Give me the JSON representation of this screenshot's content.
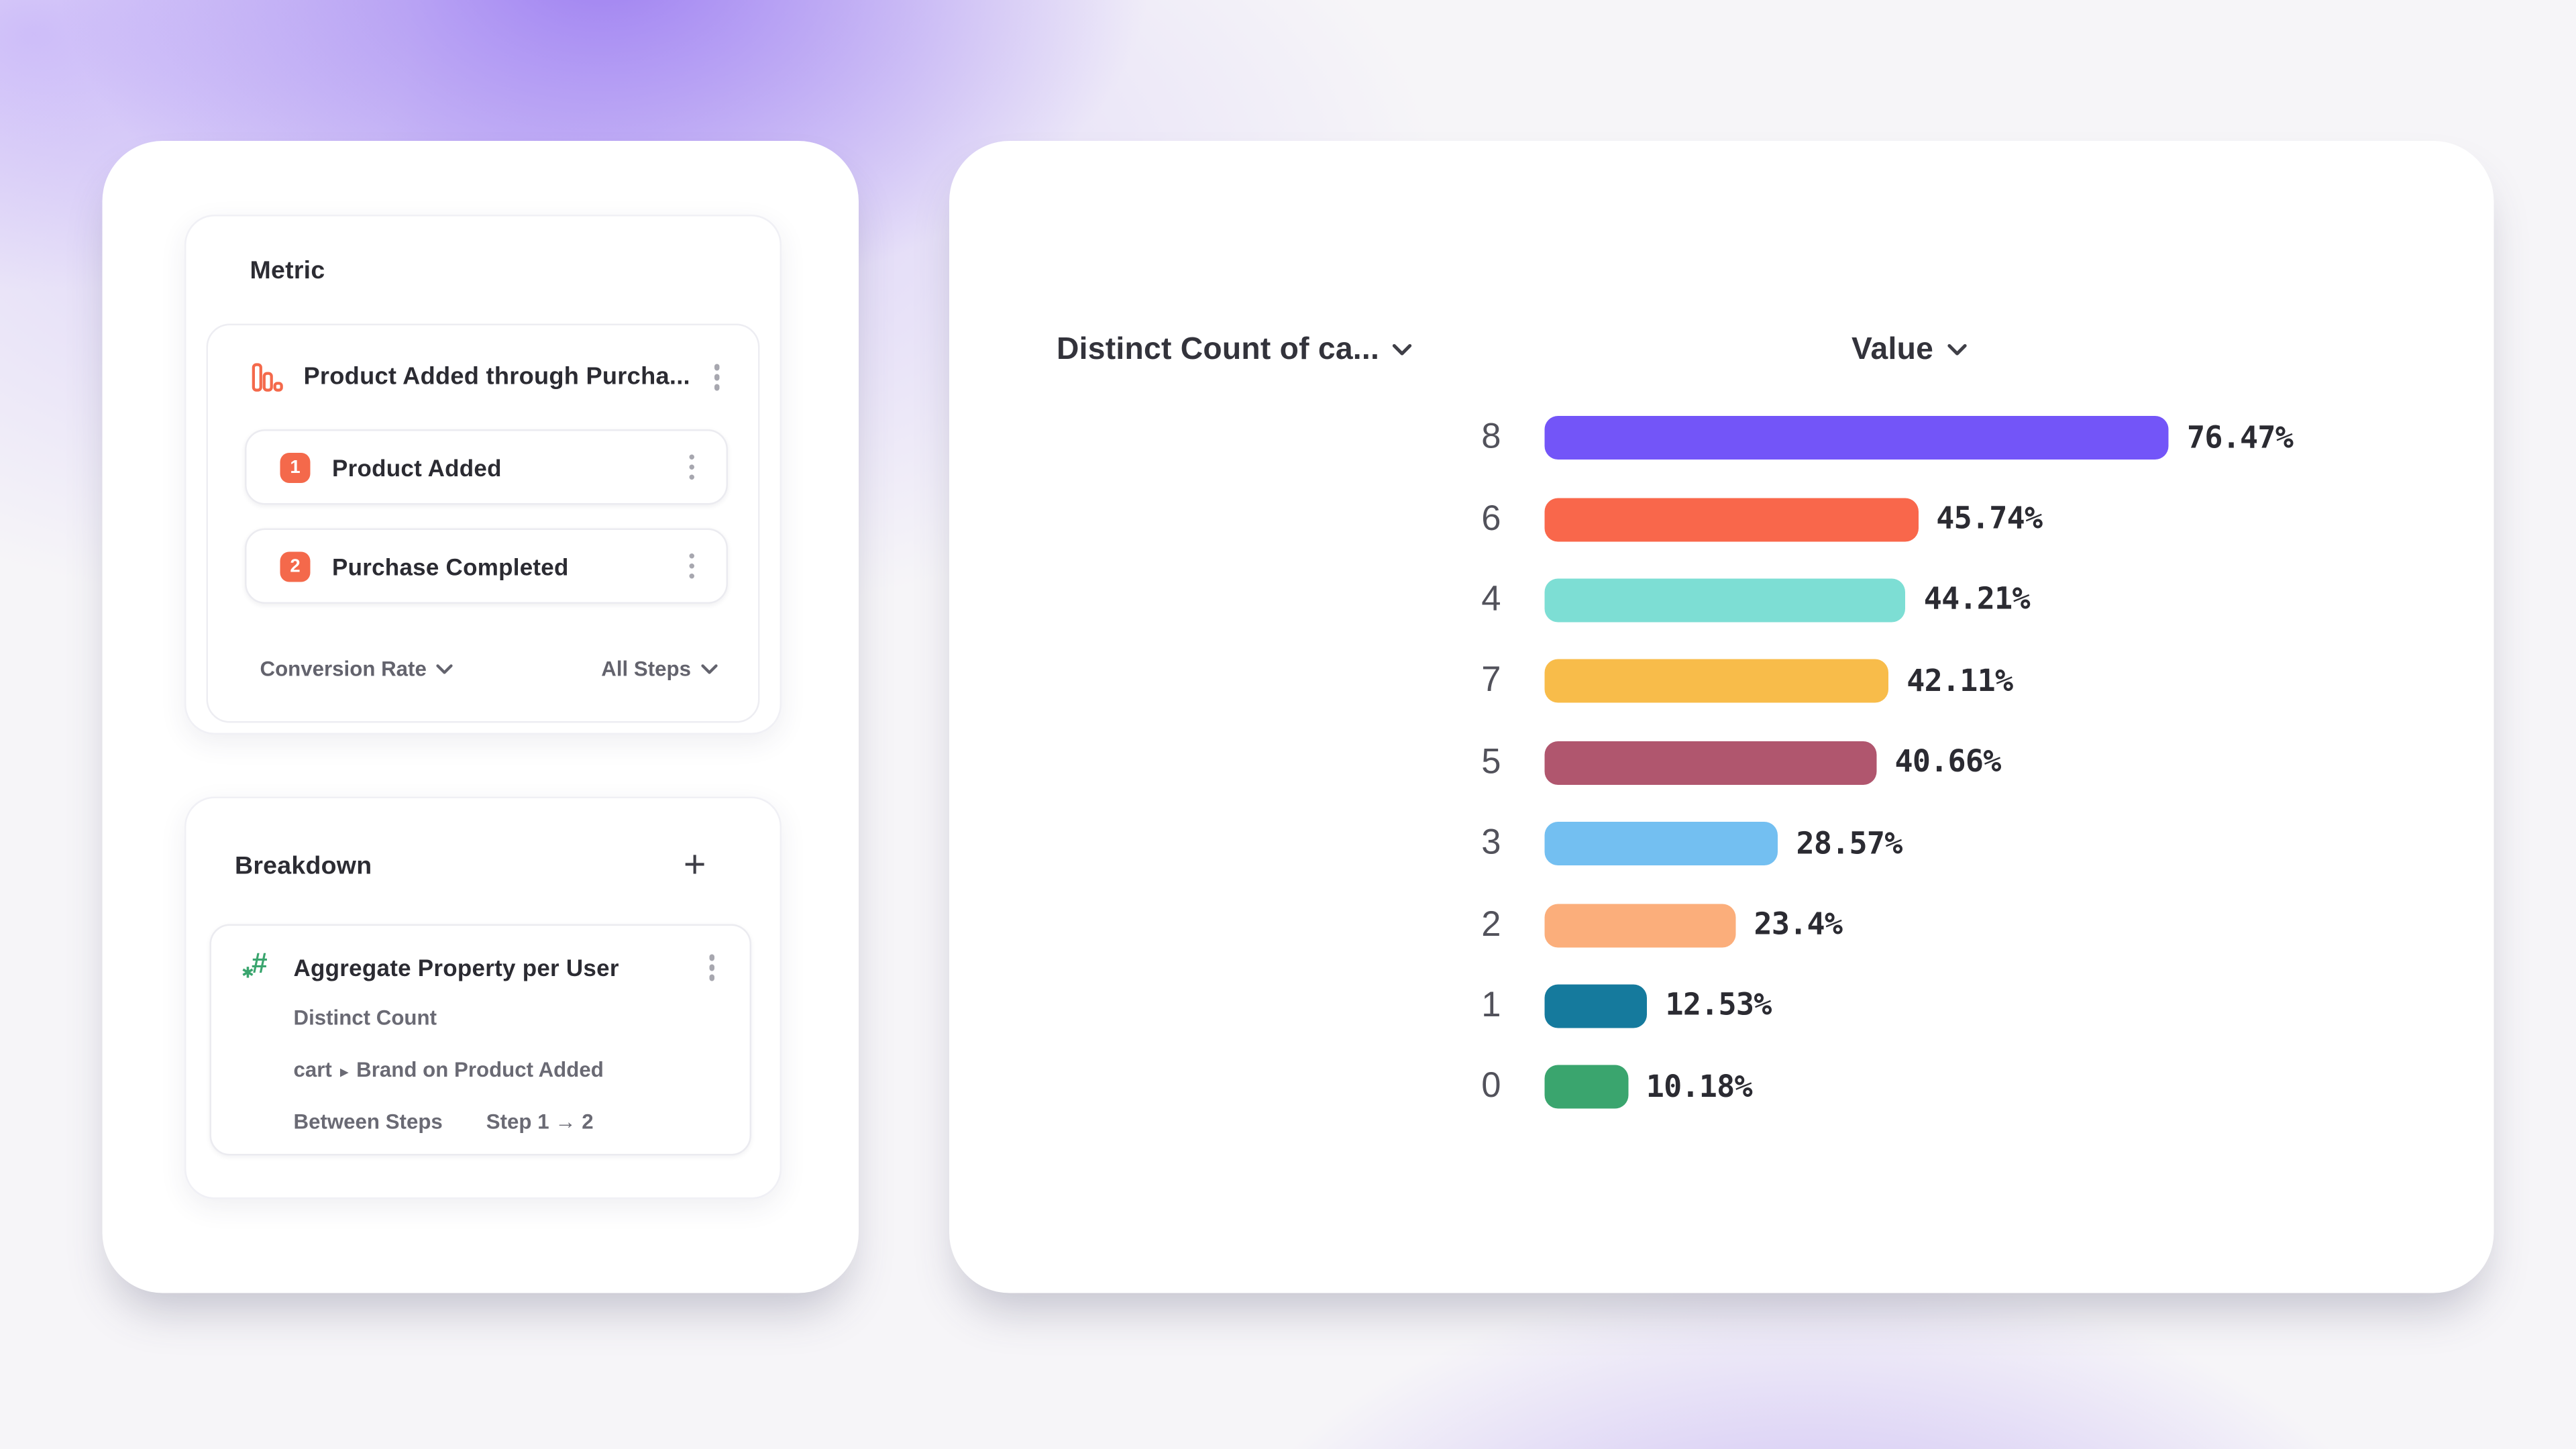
{
  "page": {
    "background_base": "#f6f5f8",
    "glow_color": "#8f6df2"
  },
  "metric_panel": {
    "title": "Metric",
    "metric": {
      "icon": "funnel-bars-icon",
      "name": "Product Added through Purcha...",
      "accent_color": "#f4694b"
    },
    "steps": [
      {
        "index": "1",
        "label": "Product Added"
      },
      {
        "index": "2",
        "label": "Purchase Completed"
      }
    ],
    "footer": {
      "measure_dropdown": "Conversion Rate",
      "steps_dropdown": "All Steps"
    }
  },
  "breakdown_panel": {
    "title": "Breakdown",
    "add_button": "+",
    "item": {
      "icon": "hash-aggregate-icon",
      "icon_color": "#3aa56e",
      "name": "Aggregate Property per User",
      "aggregation": "Distinct Count",
      "property_event": "cart",
      "property_name": "Brand on Product Added",
      "scope_label": "Between Steps",
      "scope_value": "Step 1 → 2"
    }
  },
  "chart": {
    "category_header": "Distinct Count of ca...",
    "value_header": "Value"
  },
  "chart_data": {
    "type": "bar",
    "orientation": "horizontal",
    "categories": [
      "8",
      "6",
      "4",
      "7",
      "5",
      "3",
      "2",
      "1",
      "0"
    ],
    "values": [
      76.47,
      45.74,
      44.21,
      42.11,
      40.66,
      28.57,
      23.4,
      12.53,
      10.18
    ],
    "value_labels": [
      "76.47%",
      "45.74%",
      "44.21%",
      "42.11%",
      "40.66%",
      "28.57%",
      "23.4%",
      "12.53%",
      "10.18%"
    ],
    "colors": [
      "#7355f8",
      "#f9674b",
      "#7dded4",
      "#f8bc4a",
      "#b0566e",
      "#73bff1",
      "#fbae7b",
      "#157a9d",
      "#3aa56e"
    ],
    "xlim": [
      0,
      100
    ],
    "grid": false,
    "legend": false,
    "value_label_position": "right-of-bar"
  }
}
